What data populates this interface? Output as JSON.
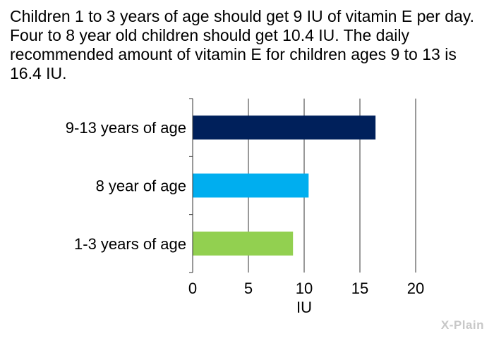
{
  "caption": "Children 1 to 3 years of age should get 9 IU of vitamin E per day. Four to 8 year old children should get 10.4 IU. The daily recommended amount of vitamin E for children ages 9 to 13 is 16.4 IU.",
  "logo_text": "X-Plain",
  "chart_data": {
    "type": "bar",
    "orientation": "horizontal",
    "categories": [
      "9-13 years of age",
      "8 year of age",
      "1-3 years of age"
    ],
    "values": [
      16.4,
      10.4,
      9
    ],
    "colors": [
      "#00205b",
      "#00aeef",
      "#92d050"
    ],
    "xlabel": "IU",
    "ylabel": "",
    "xlim": [
      0,
      20
    ],
    "xticks": [
      0,
      5,
      10,
      15,
      20
    ],
    "grid": true
  }
}
